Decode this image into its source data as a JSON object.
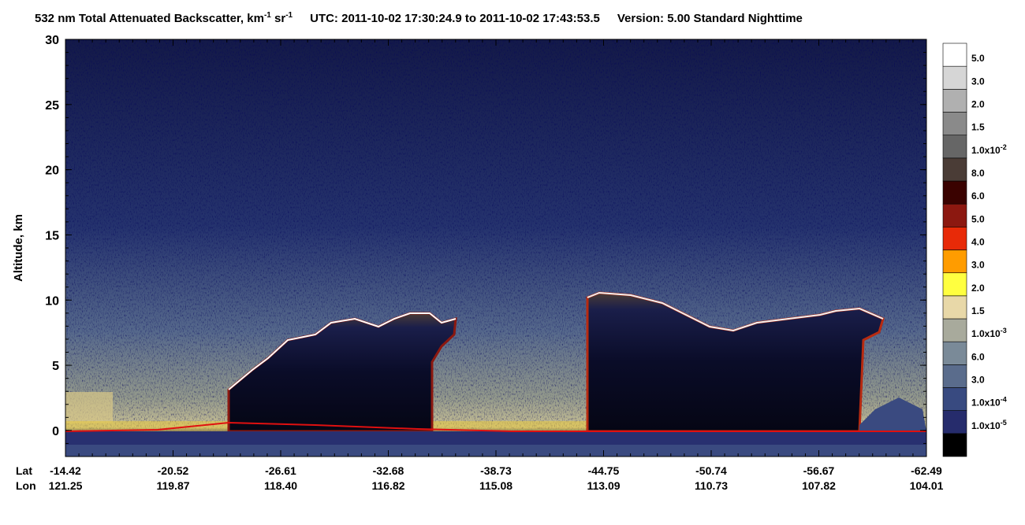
{
  "chart_data": {
    "type": "curtain",
    "title_parts": [
      "532 nm Total Attenuated Backscatter, km",
      "-1",
      " sr",
      "-1",
      "UTC:  2011-10-02 17:30:24.9  to  2011-10-02 17:43:53.5",
      "Version: 5.00  Standard  Nighttime"
    ],
    "ylabel": "Altitude, km",
    "ylim": [
      -2,
      30
    ],
    "yticks": [
      0,
      5,
      10,
      15,
      20,
      25,
      30
    ],
    "x_row_labels": [
      "Lat",
      "Lon"
    ],
    "lat": [
      "-14.42",
      "-20.52",
      "-26.61",
      "-32.68",
      "-38.73",
      "-44.75",
      "-50.74",
      "-56.67",
      "-62.49"
    ],
    "lon": [
      "121.25",
      "119.87",
      "118.40",
      "116.82",
      "115.08",
      "113.09",
      "110.73",
      "107.82",
      "104.01"
    ],
    "colorbar": [
      {
        "color": "#000000",
        "label": null
      },
      {
        "color": "#262c6c",
        "label": "1.0x10",
        "sup": "-5"
      },
      {
        "color": "#384a80",
        "label": "1.0x10",
        "sup": "-4"
      },
      {
        "color": "#5a6c8c",
        "label": "3.0"
      },
      {
        "color": "#7a8a98",
        "label": "6.0"
      },
      {
        "color": "#a8aa9c",
        "label": "1.0x10",
        "sup": "-3"
      },
      {
        "color": "#e8d8a8",
        "label": "1.5"
      },
      {
        "color": "#ffff40",
        "label": "2.0"
      },
      {
        "color": "#ff9c00",
        "label": "3.0"
      },
      {
        "color": "#e82a08",
        "label": "4.0"
      },
      {
        "color": "#8c1810",
        "label": "5.0"
      },
      {
        "color": "#3a0200",
        "label": "6.0"
      },
      {
        "color": "#4a3c36",
        "label": "8.0"
      },
      {
        "color": "#666666",
        "label": "1.0x10",
        "sup": "-2"
      },
      {
        "color": "#8a8a8a",
        "label": "1.5"
      },
      {
        "color": "#b0b0b0",
        "label": "2.0"
      },
      {
        "color": "#d6d6d6",
        "label": "3.0"
      },
      {
        "color": "#ffffff",
        "label": "5.0"
      }
    ]
  }
}
